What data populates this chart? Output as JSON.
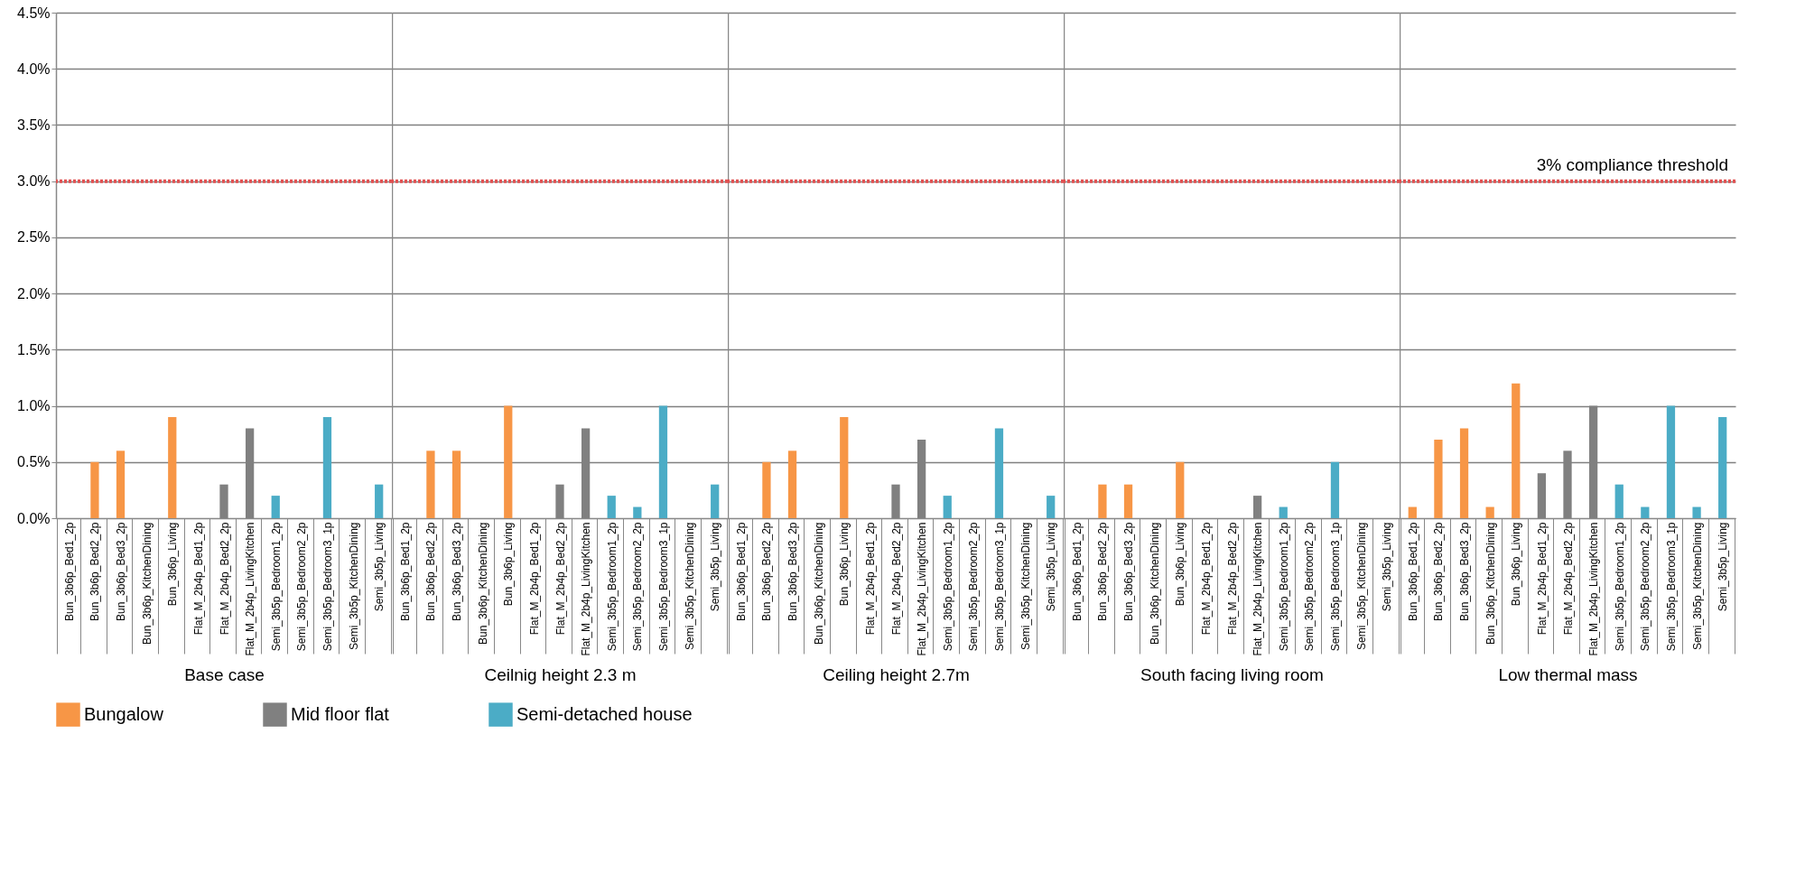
{
  "chart_data": [
    {
      "type": "bar",
      "xlabel": "Base case",
      "categories": [
        "Bun_3b6p_Bed1_2p",
        "Bun_3b6p_Bed2_2p",
        "Bun_3b6p_Bed3_2p",
        "Bun_3b6p_KitchenDining",
        "Bun_3b6p_Living",
        "Flat_M_2b4p_Bed1_2p",
        "Flat_M_2b4p_Bed2_2p",
        "Flat_M_2b4p_LivingKitchen",
        "Semi_3b5p_Bedroom1_2p",
        "Semi_3b5p_Bedroom2_2p",
        "Semi_3b5p_Bedroom3_1p",
        "Semi_3b5p_KitchenDining",
        "Semi_3b5p_Living"
      ],
      "series": [
        {
          "name": "Bungalow",
          "color": "#f79646",
          "values": [
            0,
            0.5,
            0.6,
            0,
            0.9,
            null,
            null,
            null,
            null,
            null,
            null,
            null,
            null
          ]
        },
        {
          "name": "Mid floor flat",
          "color": "#808080",
          "values": [
            null,
            null,
            null,
            null,
            null,
            0,
            0.3,
            0.8,
            null,
            null,
            null,
            null,
            null
          ]
        },
        {
          "name": "Semi-detached house",
          "color": "#4bacc6",
          "values": [
            null,
            null,
            null,
            null,
            null,
            null,
            null,
            null,
            0.2,
            0,
            0.9,
            0,
            0.3
          ]
        }
      ],
      "ylim": [
        0,
        4.5
      ],
      "yticks": [
        {
          "value": 0,
          "label": "0.0%"
        },
        {
          "value": 0.5,
          "label": "0.5%"
        },
        {
          "value": 1,
          "label": "1.0%"
        },
        {
          "value": 1.5,
          "label": "1.5%"
        },
        {
          "value": 2,
          "label": "2.0%"
        },
        {
          "value": 2.5,
          "label": "2.5%"
        },
        {
          "value": 3,
          "label": "3.0%"
        },
        {
          "value": 3.5,
          "label": "3.5%"
        },
        {
          "value": 4,
          "label": "4.0%"
        },
        {
          "value": 4.5,
          "label": "4.5%"
        }
      ],
      "grid": "y",
      "legend": "bottom",
      "ref_lines": [
        {
          "axis": "y",
          "value": 3,
          "color": "#e05050",
          "line_style": "dotted"
        }
      ]
    },
    {
      "type": "bar",
      "xlabel": "Ceilnig height 2.3 m",
      "categories": [
        "Bun_3b6p_Bed1_2p",
        "Bun_3b6p_Bed2_2p",
        "Bun_3b6p_Bed3_2p",
        "Bun_3b6p_KitchenDining",
        "Bun_3b6p_Living",
        "Flat_M_2b4p_Bed1_2p",
        "Flat_M_2b4p_Bed2_2p",
        "Flat_M_2b4p_LivingKitchen",
        "Semi_3b5p_Bedroom1_2p",
        "Semi_3b5p_Bedroom2_2p",
        "Semi_3b5p_Bedroom3_1p",
        "Semi_3b5p_KitchenDining",
        "Semi_3b5p_Living"
      ],
      "series": [
        {
          "color": "#f79646",
          "values": [
            0,
            0.6,
            0.6,
            0,
            1.0,
            null,
            null,
            null,
            null,
            null,
            null,
            null,
            null
          ]
        },
        {
          "color": "#808080",
          "values": [
            null,
            null,
            null,
            null,
            null,
            0,
            0.3,
            0.8,
            null,
            null,
            null,
            null,
            null
          ]
        },
        {
          "color": "#4bacc6",
          "values": [
            null,
            null,
            null,
            null,
            null,
            null,
            null,
            null,
            0.2,
            0.1,
            1.0,
            0,
            0.3
          ]
        }
      ],
      "ylim": [
        0,
        4.5
      ],
      "yticks": [
        0,
        0.5,
        1,
        1.5,
        2,
        2.5,
        3,
        3.5,
        4,
        4.5
      ],
      "grid": "y",
      "tick_labels": "x",
      "ref_lines": [
        {
          "axis": "y",
          "value": 3,
          "color": "#e05050",
          "line_style": "dotted"
        }
      ]
    },
    {
      "type": "bar",
      "xlabel": "Ceiling height 2.7m",
      "categories": [
        "Bun_3b6p_Bed1_2p",
        "Bun_3b6p_Bed2_2p",
        "Bun_3b6p_Bed3_2p",
        "Bun_3b6p_KitchenDining",
        "Bun_3b6p_Living",
        "Flat_M_2b4p_Bed1_2p",
        "Flat_M_2b4p_Bed2_2p",
        "Flat_M_2b4p_LivingKitchen",
        "Semi_3b5p_Bedroom1_2p",
        "Semi_3b5p_Bedroom2_2p",
        "Semi_3b5p_Bedroom3_1p",
        "Semi_3b5p_KitchenDining",
        "Semi_3b5p_Living"
      ],
      "series": [
        {
          "color": "#f79646",
          "values": [
            0,
            0.5,
            0.6,
            0,
            0.9,
            null,
            null,
            null,
            null,
            null,
            null,
            null,
            null
          ]
        },
        {
          "color": "#808080",
          "values": [
            null,
            null,
            null,
            null,
            null,
            0,
            0.3,
            0.7,
            null,
            null,
            null,
            null,
            null
          ]
        },
        {
          "color": "#4bacc6",
          "values": [
            null,
            null,
            null,
            null,
            null,
            null,
            null,
            null,
            0.2,
            0,
            0.8,
            0,
            0.2
          ]
        }
      ],
      "ylim": [
        0,
        4.5
      ],
      "yticks": [
        0,
        0.5,
        1,
        1.5,
        2,
        2.5,
        3,
        3.5,
        4,
        4.5
      ],
      "grid": "y",
      "tick_labels": "x",
      "ref_lines": [
        {
          "axis": "y",
          "value": 3,
          "color": "#e05050",
          "line_style": "dotted"
        }
      ]
    },
    {
      "type": "bar",
      "xlabel": "South facing living room",
      "categories": [
        "Bun_3b6p_Bed1_2p",
        "Bun_3b6p_Bed2_2p",
        "Bun_3b6p_Bed3_2p",
        "Bun_3b6p_KitchenDining",
        "Bun_3b6p_Living",
        "Flat_M_2b4p_Bed1_2p",
        "Flat_M_2b4p_Bed2_2p",
        "Flat_M_2b4p_LivingKitchen",
        "Semi_3b5p_Bedroom1_2p",
        "Semi_3b5p_Bedroom2_2p",
        "Semi_3b5p_Bedroom3_1p",
        "Semi_3b5p_KitchenDining",
        "Semi_3b5p_Living"
      ],
      "series": [
        {
          "color": "#f79646",
          "values": [
            0,
            0.3,
            0.3,
            0,
            0.5,
            null,
            null,
            null,
            null,
            null,
            null,
            null,
            null
          ]
        },
        {
          "color": "#808080",
          "values": [
            null,
            null,
            null,
            null,
            null,
            0,
            0,
            0.2,
            null,
            null,
            null,
            null,
            null
          ]
        },
        {
          "color": "#4bacc6",
          "values": [
            null,
            null,
            null,
            null,
            null,
            null,
            null,
            null,
            0.1,
            0,
            0.5,
            0,
            0
          ]
        }
      ],
      "ylim": [
        0,
        4.5
      ],
      "yticks": [
        0,
        0.5,
        1,
        1.5,
        2,
        2.5,
        3,
        3.5,
        4,
        4.5
      ],
      "grid": "y",
      "tick_labels": "x",
      "ref_lines": [
        {
          "axis": "y",
          "value": 3,
          "color": "#e05050",
          "line_style": "dotted"
        }
      ]
    },
    {
      "type": "bar",
      "xlabel": "Low thermal mass",
      "categories": [
        "Bun_3b6p_Bed1_2p",
        "Bun_3b6p_Bed2_2p",
        "Bun_3b6p_Bed3_2p",
        "Bun_3b6p_KitchenDining",
        "Bun_3b6p_Living",
        "Flat_M_2b4p_Bed1_2p",
        "Flat_M_2b4p_Bed2_2p",
        "Flat_M_2b4p_LivingKitchen",
        "Semi_3b5p_Bedroom1_2p",
        "Semi_3b5p_Bedroom2_2p",
        "Semi_3b5p_Bedroom3_1p",
        "Semi_3b5p_KitchenDining",
        "Semi_3b5p_Living"
      ],
      "series": [
        {
          "color": "#f79646",
          "values": [
            0.1,
            0.7,
            0.8,
            0.1,
            1.2,
            null,
            null,
            null,
            null,
            null,
            null,
            null,
            null
          ]
        },
        {
          "color": "#808080",
          "values": [
            null,
            null,
            null,
            null,
            null,
            0.4,
            0.6,
            1.0,
            null,
            null,
            null,
            null,
            null
          ]
        },
        {
          "color": "#4bacc6",
          "values": [
            null,
            null,
            null,
            null,
            null,
            null,
            null,
            null,
            0.3,
            0.1,
            1.0,
            0.1,
            0.9
          ]
        }
      ],
      "ylim": [
        0,
        4.5
      ],
      "yticks": [
        0,
        0.5,
        1,
        1.5,
        2,
        2.5,
        3,
        3.5,
        4,
        4.5
      ],
      "grid": "y",
      "tick_labels": "x",
      "ref_lines": [
        {
          "axis": "y",
          "value": 3,
          "color": "#e05050",
          "line_style": "dotted",
          "label": "3% compliance threshold"
        }
      ]
    }
  ]
}
